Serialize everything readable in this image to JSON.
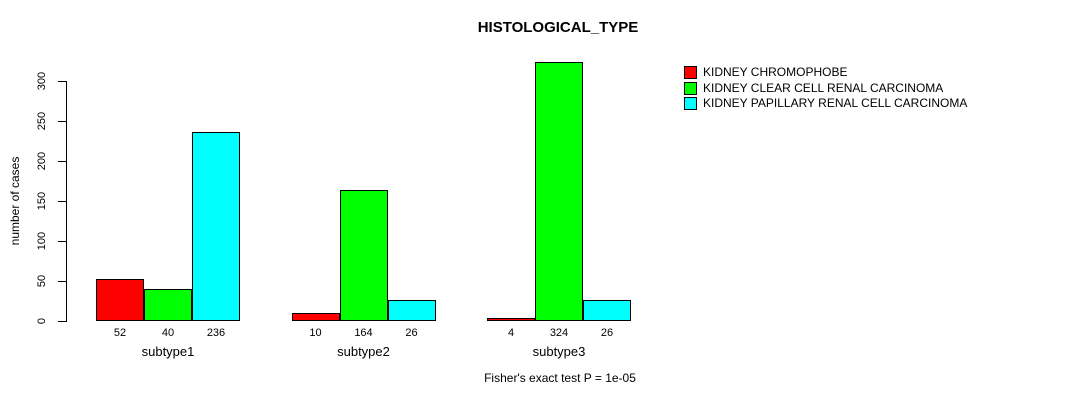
{
  "chart_data": {
    "type": "bar",
    "title": "HISTOLOGICAL_TYPE",
    "ylabel": "number of cases",
    "xlabel": "",
    "footnote": "Fisher's exact test P = 1e-05",
    "categories": [
      "subtype1",
      "subtype2",
      "subtype3"
    ],
    "series": [
      {
        "name": "KIDNEY CHROMOPHOBE",
        "color": "#ff0000",
        "values": [
          52,
          10,
          4
        ]
      },
      {
        "name": "KIDNEY CLEAR CELL RENAL CARCINOMA",
        "color": "#00ff00",
        "values": [
          40,
          164,
          324
        ]
      },
      {
        "name": "KIDNEY PAPILLARY RENAL CELL CARCINOMA",
        "color": "#00ffff",
        "values": [
          236,
          26,
          26
        ]
      }
    ],
    "bar_value_labels": [
      [
        52,
        40,
        236
      ],
      [
        10,
        164,
        26
      ],
      [
        4,
        324,
        26
      ]
    ],
    "yticks": [
      0,
      50,
      100,
      150,
      200,
      250,
      300
    ],
    "ylim": [
      0,
      340
    ],
    "grid": false,
    "legend_position": "right-outside",
    "axis_color": "#000000",
    "background": "#ffffff"
  }
}
